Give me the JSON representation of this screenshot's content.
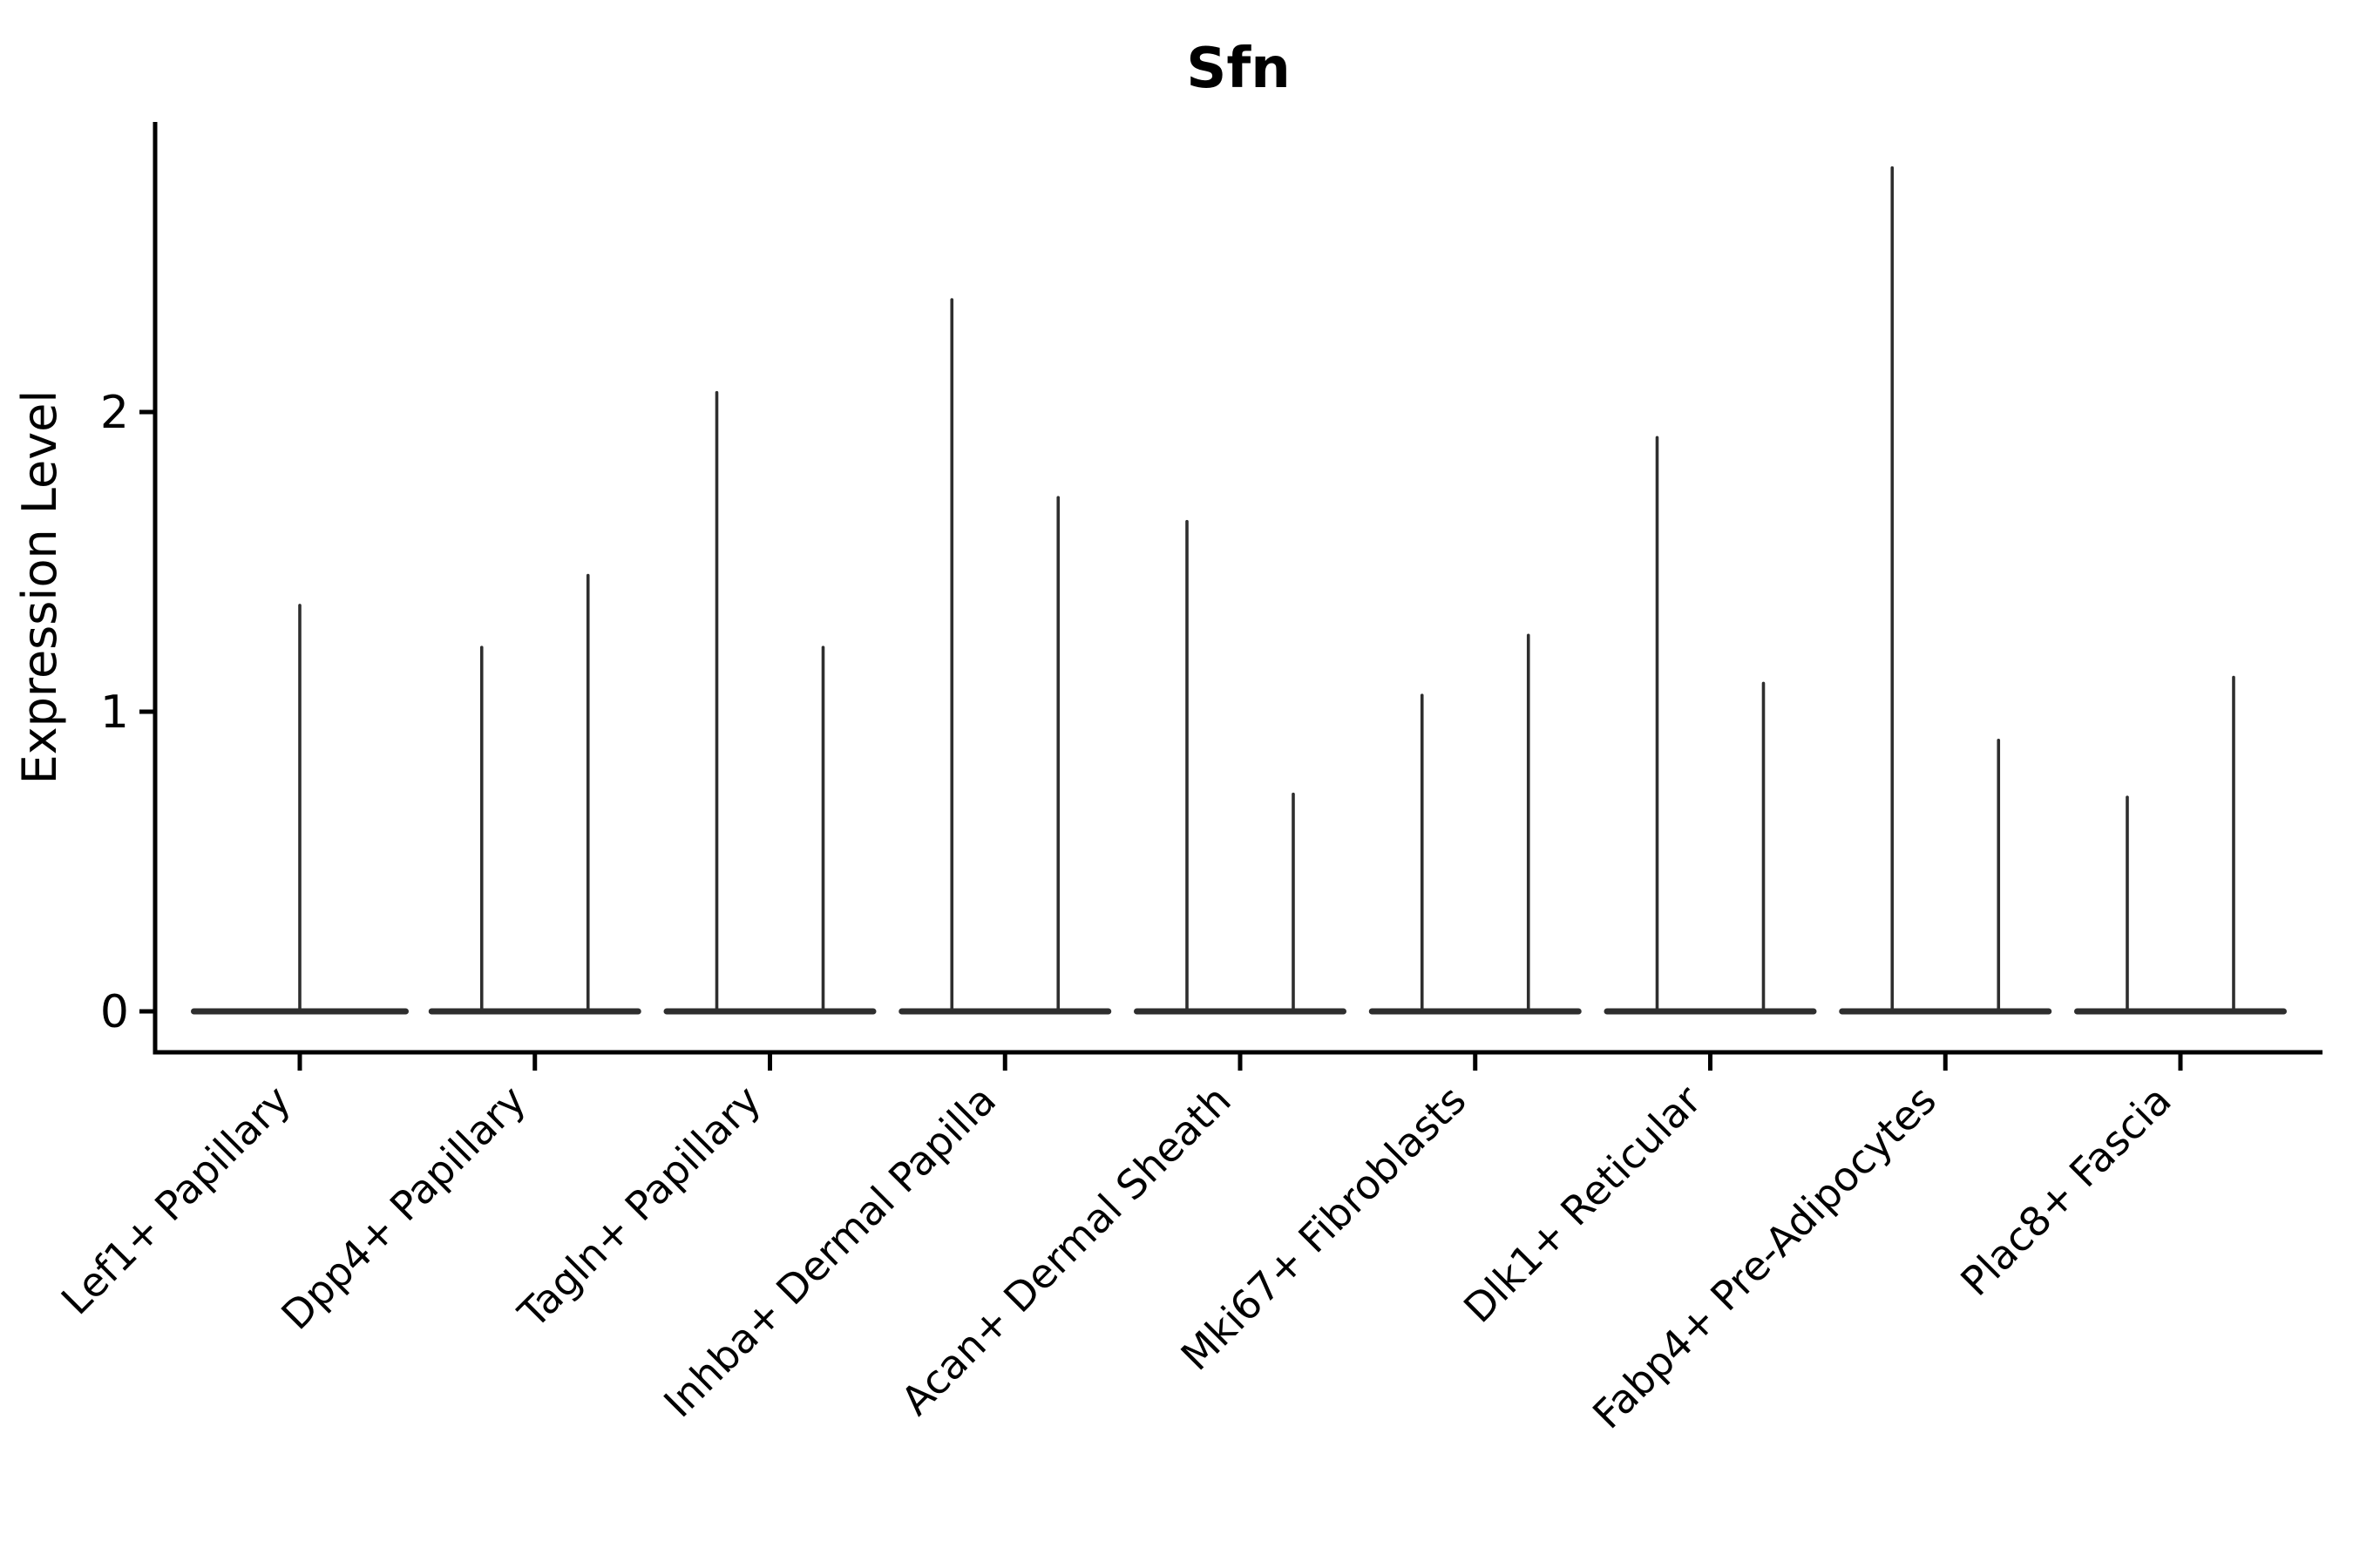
{
  "page": {
    "background_color": "#ffffff",
    "text_color": "#000000",
    "violin_color": "#2e2e2e",
    "axis_color": "#000000"
  },
  "chart_data": {
    "type": "violin",
    "title": "Sfn",
    "ylabel": "Expression Level",
    "xlabel": "",
    "yticks": [
      "0",
      "1",
      "2"
    ],
    "ytick_values": [
      0,
      1,
      2
    ],
    "ylim": [
      -0.14,
      2.97
    ],
    "grid": false,
    "legend": null,
    "baseline_value": 0,
    "categories": [
      "Lef1+ Papillary",
      "Dpp4+ Papillary",
      "Tagln+ Papillary",
      "Inhba+ Dermal Papilla",
      "Acan+ Dermal Sheath",
      "Mki67+ Fibroblasts",
      "Dlk1+ Reticular",
      "Fabp4+ Pre-Adipocytes",
      "Plac8+ Fascia"
    ],
    "violin_maxima_per_category": [
      [
        1.36
      ],
      [
        1.22,
        1.46
      ],
      [
        2.07,
        1.22
      ],
      [
        2.38,
        1.72
      ],
      [
        1.64,
        0.73
      ],
      [
        1.06,
        1.26
      ],
      [
        1.92,
        1.1
      ],
      [
        2.82,
        0.91
      ],
      [
        0.72,
        1.12
      ]
    ],
    "violin_shape_note": "Each violin's density is concentrated at expression 0 (flat horizontal bar) with a hairline spike rising to its maximum value; categories with two violins show two spikes side by side."
  }
}
